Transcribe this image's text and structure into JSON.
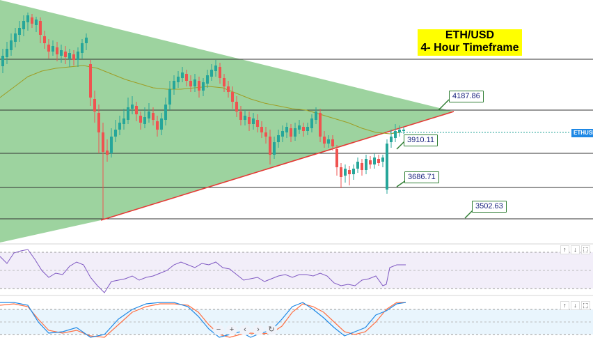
{
  "title": {
    "line1": "ETH/USD",
    "line2": "4- Hour Timeframe"
  },
  "symbol_tag": "ETHUSD",
  "levels": [
    {
      "price": "4187.86"
    },
    {
      "price": "3910.11"
    },
    {
      "price": "3686.71"
    },
    {
      "price": "3502.63"
    }
  ],
  "pane_controls": {
    "up": "↑",
    "down": "↓",
    "restore": "⬚"
  },
  "nav_controls": {
    "zoom_out": "−",
    "zoom_in": "+",
    "back": "‹",
    "forward": "›",
    "reset": "↻"
  },
  "colors": {
    "bull": "#26a69a",
    "bear": "#ef5350",
    "triangle_fill": "#81c784",
    "trendline": "#e53935",
    "ma": "#9e9d24",
    "rsi": "#7e57c2",
    "stoch_k": "#1e88e5",
    "stoch_d": "#ff7043",
    "title_bg": "#ffff00"
  },
  "chart_data": {
    "type": "candlestick",
    "symbol": "ETHUSD",
    "timeframe": "4H",
    "levels": [
      4187.86,
      3910.11,
      3686.71,
      3502.63
    ],
    "indicators": [
      "RSI",
      "Stochastic"
    ]
  }
}
